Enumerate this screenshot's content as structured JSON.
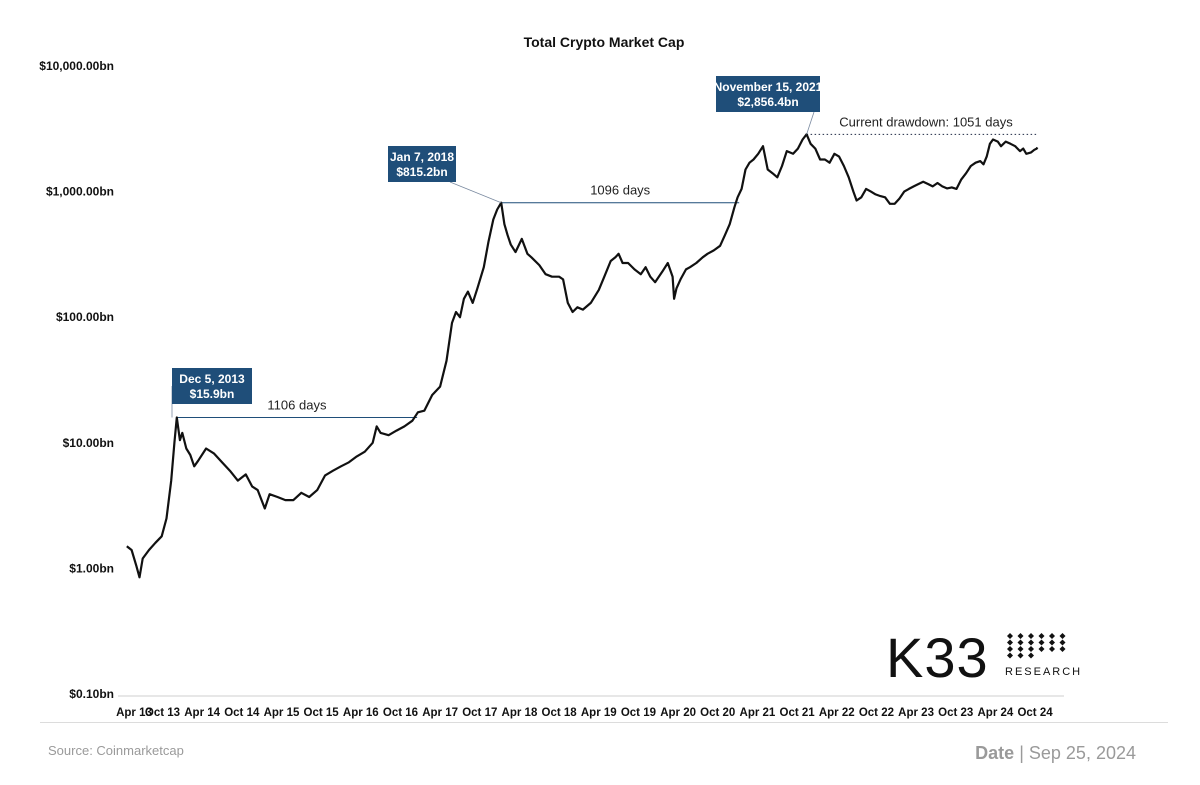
{
  "chart_data": {
    "type": "line",
    "scale": "log",
    "title": "Total Crypto Market Cap",
    "ylabel": "",
    "xlabel": "",
    "ylim": [
      0.1,
      10000
    ],
    "y_unit": "$bn",
    "yticks": [
      {
        "value": 0.1,
        "label": "$0.10bn"
      },
      {
        "value": 1,
        "label": "$1.00bn"
      },
      {
        "value": 10,
        "label": "$10.00bn"
      },
      {
        "value": 100,
        "label": "$100.00bn"
      },
      {
        "value": 1000,
        "label": "$1,000.00bn"
      },
      {
        "value": 10000,
        "label": "$10,000.00bn"
      }
    ],
    "xlim": [
      2013.29,
      2024.85
    ],
    "xticks": [
      {
        "t": 2013.25,
        "label": "Apr 13"
      },
      {
        "t": 2013.75,
        "label": "Oct 13"
      },
      {
        "t": 2014.25,
        "label": "Apr 14"
      },
      {
        "t": 2014.75,
        "label": "Oct 14"
      },
      {
        "t": 2015.25,
        "label": "Apr 15"
      },
      {
        "t": 2015.75,
        "label": "Oct 15"
      },
      {
        "t": 2016.25,
        "label": "Apr 16"
      },
      {
        "t": 2016.75,
        "label": "Oct 16"
      },
      {
        "t": 2017.25,
        "label": "Apr 17"
      },
      {
        "t": 2017.75,
        "label": "Oct 17"
      },
      {
        "t": 2018.25,
        "label": "Apr 18"
      },
      {
        "t": 2018.75,
        "label": "Oct 18"
      },
      {
        "t": 2019.25,
        "label": "Apr 19"
      },
      {
        "t": 2019.75,
        "label": "Oct 19"
      },
      {
        "t": 2020.25,
        "label": "Apr 20"
      },
      {
        "t": 2020.75,
        "label": "Oct 20"
      },
      {
        "t": 2021.25,
        "label": "Apr 21"
      },
      {
        "t": 2021.75,
        "label": "Oct 21"
      },
      {
        "t": 2022.25,
        "label": "Apr 22"
      },
      {
        "t": 2022.75,
        "label": "Oct 22"
      },
      {
        "t": 2023.25,
        "label": "Apr 23"
      },
      {
        "t": 2023.75,
        "label": "Oct 23"
      },
      {
        "t": 2024.25,
        "label": "Apr 24"
      },
      {
        "t": 2024.75,
        "label": "Oct 24"
      }
    ],
    "series": [
      {
        "name": "Total Crypto Market Cap",
        "color": "#111111",
        "points": [
          [
            2013.3,
            1.5
          ],
          [
            2013.36,
            1.4
          ],
          [
            2013.42,
            1.05
          ],
          [
            2013.46,
            0.85
          ],
          [
            2013.5,
            1.2
          ],
          [
            2013.58,
            1.4
          ],
          [
            2013.66,
            1.6
          ],
          [
            2013.74,
            1.8
          ],
          [
            2013.8,
            2.5
          ],
          [
            2013.86,
            5.0
          ],
          [
            2013.9,
            10.0
          ],
          [
            2013.93,
            15.9
          ],
          [
            2013.97,
            10.5
          ],
          [
            2014.0,
            12.0
          ],
          [
            2014.05,
            9.0
          ],
          [
            2014.1,
            8.0
          ],
          [
            2014.15,
            6.5
          ],
          [
            2014.2,
            7.2
          ],
          [
            2014.3,
            9.0
          ],
          [
            2014.4,
            8.2
          ],
          [
            2014.5,
            7.0
          ],
          [
            2014.6,
            6.0
          ],
          [
            2014.7,
            5.0
          ],
          [
            2014.8,
            5.6
          ],
          [
            2014.88,
            4.5
          ],
          [
            2014.95,
            4.2
          ],
          [
            2015.04,
            3.0
          ],
          [
            2015.1,
            3.9
          ],
          [
            2015.2,
            3.7
          ],
          [
            2015.3,
            3.5
          ],
          [
            2015.4,
            3.5
          ],
          [
            2015.5,
            4.0
          ],
          [
            2015.6,
            3.7
          ],
          [
            2015.7,
            4.2
          ],
          [
            2015.8,
            5.5
          ],
          [
            2015.9,
            6.0
          ],
          [
            2016.0,
            6.5
          ],
          [
            2016.1,
            7.0
          ],
          [
            2016.2,
            7.8
          ],
          [
            2016.3,
            8.5
          ],
          [
            2016.4,
            10.0
          ],
          [
            2016.45,
            13.5
          ],
          [
            2016.5,
            12.0
          ],
          [
            2016.6,
            11.5
          ],
          [
            2016.7,
            12.5
          ],
          [
            2016.8,
            13.5
          ],
          [
            2016.9,
            15.0
          ],
          [
            2016.97,
            17.5
          ],
          [
            2017.05,
            18.0
          ],
          [
            2017.15,
            24.0
          ],
          [
            2017.25,
            28.0
          ],
          [
            2017.33,
            45.0
          ],
          [
            2017.4,
            90.0
          ],
          [
            2017.45,
            110.0
          ],
          [
            2017.5,
            100.0
          ],
          [
            2017.55,
            140.0
          ],
          [
            2017.6,
            160.0
          ],
          [
            2017.66,
            130.0
          ],
          [
            2017.72,
            170.0
          ],
          [
            2017.8,
            250.0
          ],
          [
            2017.86,
            400.0
          ],
          [
            2017.92,
            600.0
          ],
          [
            2017.97,
            720.0
          ],
          [
            2018.02,
            815.2
          ],
          [
            2018.06,
            550.0
          ],
          [
            2018.1,
            450.0
          ],
          [
            2018.14,
            380.0
          ],
          [
            2018.2,
            330.0
          ],
          [
            2018.28,
            420.0
          ],
          [
            2018.35,
            320.0
          ],
          [
            2018.4,
            300.0
          ],
          [
            2018.5,
            260.0
          ],
          [
            2018.58,
            220.0
          ],
          [
            2018.66,
            210.0
          ],
          [
            2018.75,
            210.0
          ],
          [
            2018.8,
            200.0
          ],
          [
            2018.86,
            130.0
          ],
          [
            2018.92,
            110.0
          ],
          [
            2018.98,
            120.0
          ],
          [
            2019.05,
            115.0
          ],
          [
            2019.15,
            130.0
          ],
          [
            2019.25,
            165.0
          ],
          [
            2019.32,
            210.0
          ],
          [
            2019.4,
            280.0
          ],
          [
            2019.46,
            300.0
          ],
          [
            2019.5,
            320.0
          ],
          [
            2019.55,
            270.0
          ],
          [
            2019.62,
            270.0
          ],
          [
            2019.7,
            240.0
          ],
          [
            2019.78,
            220.0
          ],
          [
            2019.84,
            250.0
          ],
          [
            2019.9,
            210.0
          ],
          [
            2019.96,
            190.0
          ],
          [
            2020.05,
            230.0
          ],
          [
            2020.12,
            270.0
          ],
          [
            2020.18,
            210.0
          ],
          [
            2020.2,
            140.0
          ],
          [
            2020.23,
            170.0
          ],
          [
            2020.28,
            200.0
          ],
          [
            2020.35,
            240.0
          ],
          [
            2020.4,
            250.0
          ],
          [
            2020.48,
            270.0
          ],
          [
            2020.56,
            300.0
          ],
          [
            2020.62,
            320.0
          ],
          [
            2020.7,
            340.0
          ],
          [
            2020.78,
            370.0
          ],
          [
            2020.84,
            450.0
          ],
          [
            2020.9,
            550.0
          ],
          [
            2020.96,
            750.0
          ],
          [
            2021.0,
            900.0
          ],
          [
            2021.05,
            1050.0
          ],
          [
            2021.1,
            1500.0
          ],
          [
            2021.15,
            1700.0
          ],
          [
            2021.2,
            1800.0
          ],
          [
            2021.26,
            2000.0
          ],
          [
            2021.32,
            2300.0
          ],
          [
            2021.38,
            1500.0
          ],
          [
            2021.44,
            1400.0
          ],
          [
            2021.5,
            1300.0
          ],
          [
            2021.56,
            1600.0
          ],
          [
            2021.62,
            2100.0
          ],
          [
            2021.7,
            2000.0
          ],
          [
            2021.76,
            2200.0
          ],
          [
            2021.82,
            2600.0
          ],
          [
            2021.87,
            2856.4
          ],
          [
            2021.92,
            2400.0
          ],
          [
            2021.98,
            2200.0
          ],
          [
            2022.04,
            1800.0
          ],
          [
            2022.1,
            1800.0
          ],
          [
            2022.16,
            1700.0
          ],
          [
            2022.22,
            2000.0
          ],
          [
            2022.28,
            1900.0
          ],
          [
            2022.34,
            1600.0
          ],
          [
            2022.4,
            1300.0
          ],
          [
            2022.46,
            1000.0
          ],
          [
            2022.5,
            850.0
          ],
          [
            2022.56,
            900.0
          ],
          [
            2022.62,
            1050.0
          ],
          [
            2022.68,
            1000.0
          ],
          [
            2022.74,
            950.0
          ],
          [
            2022.8,
            920.0
          ],
          [
            2022.86,
            900.0
          ],
          [
            2022.92,
            800.0
          ],
          [
            2022.98,
            800.0
          ],
          [
            2023.04,
            880.0
          ],
          [
            2023.1,
            1000.0
          ],
          [
            2023.16,
            1050.0
          ],
          [
            2023.22,
            1100.0
          ],
          [
            2023.28,
            1150.0
          ],
          [
            2023.34,
            1200.0
          ],
          [
            2023.4,
            1150.0
          ],
          [
            2023.46,
            1100.0
          ],
          [
            2023.52,
            1170.0
          ],
          [
            2023.58,
            1100.0
          ],
          [
            2023.64,
            1060.0
          ],
          [
            2023.7,
            1080.0
          ],
          [
            2023.76,
            1050.0
          ],
          [
            2023.82,
            1250.0
          ],
          [
            2023.88,
            1400.0
          ],
          [
            2023.94,
            1600.0
          ],
          [
            2024.0,
            1700.0
          ],
          [
            2024.06,
            1750.0
          ],
          [
            2024.1,
            1650.0
          ],
          [
            2024.14,
            1900.0
          ],
          [
            2024.18,
            2400.0
          ],
          [
            2024.22,
            2600.0
          ],
          [
            2024.28,
            2500.0
          ],
          [
            2024.32,
            2300.0
          ],
          [
            2024.38,
            2500.0
          ],
          [
            2024.44,
            2400.0
          ],
          [
            2024.5,
            2300.0
          ],
          [
            2024.56,
            2100.0
          ],
          [
            2024.6,
            2200.0
          ],
          [
            2024.64,
            2000.0
          ],
          [
            2024.7,
            2050.0
          ],
          [
            2024.74,
            2150.0
          ],
          [
            2024.77,
            2200.0
          ],
          [
            2024.78,
            2250.0
          ]
        ]
      }
    ],
    "annotations": [
      {
        "id": "peak-2013",
        "date_label": "Dec 5, 2013",
        "value_label": "$15.9bn",
        "t": 2013.93,
        "value": 15.9
      },
      {
        "id": "peak-2018",
        "date_label": "Jan 7, 2018",
        "value_label": "$815.2bn",
        "t": 2018.02,
        "value": 815.2
      },
      {
        "id": "peak-2021",
        "date_label": "November 15, 2021",
        "value_label": "$2,856.4bn",
        "t": 2021.87,
        "value": 2856.4
      }
    ],
    "spans": [
      {
        "id": "span-2013-2016",
        "label": "1106 days",
        "t_start": 2013.93,
        "t_end": 2016.96,
        "value": 15.9,
        "style": "solid"
      },
      {
        "id": "span-2018-2020",
        "label": "1096 days",
        "t_start": 2018.02,
        "t_end": 2021.02,
        "value": 815.2,
        "style": "solid"
      },
      {
        "id": "span-current",
        "label": "Current drawdown: 1051 days",
        "t_start": 2021.87,
        "t_end": 2024.78,
        "value": 2856.4,
        "style": "dotted"
      }
    ],
    "accent_color": "#1f4e79"
  },
  "logo": {
    "main": "K33",
    "sub": "RESEARCH"
  },
  "footer": {
    "source": "Source: Coinmarketcap",
    "date_label": "Date",
    "separator": "|",
    "date_value": "Sep 25, 2024"
  }
}
